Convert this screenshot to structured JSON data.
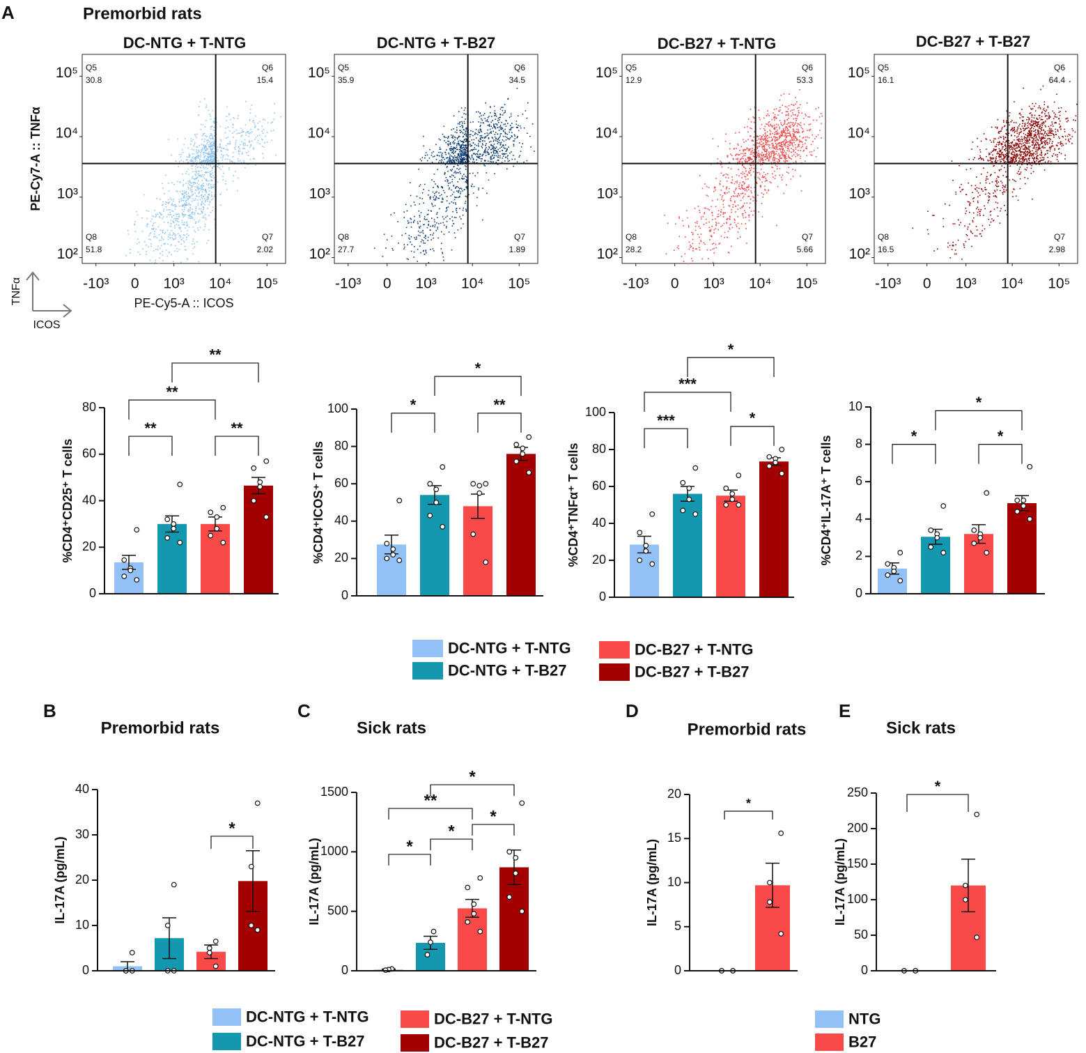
{
  "panel_labels": [
    "A",
    "B",
    "C",
    "D",
    "E"
  ],
  "header": "Premorbid rats",
  "axis_icon": {
    "y": "TNFα",
    "x": "ICOS"
  },
  "legends": [
    {
      "entries": [
        {
          "name": "DC-NTG + T-NTG",
          "color": "#92c1f7"
        },
        {
          "name": "DC-NTG + T-B27",
          "color": "#1398b0"
        },
        {
          "name": "DC-B27 + T-NTG",
          "color": "#f94a4a"
        },
        {
          "name": "DC-B27 + T-B27",
          "color": "#a30000"
        }
      ]
    },
    {
      "entries": [
        {
          "name": "DC-NTG + T-NTG",
          "color": "#92c1f7"
        },
        {
          "name": "DC-NTG + T-B27",
          "color": "#1398b0"
        },
        {
          "name": "DC-B27 + T-NTG",
          "color": "#f94a4a"
        },
        {
          "name": "DC-B27 + T-B27",
          "color": "#a30000"
        }
      ]
    },
    {
      "entries": [
        {
          "name": "NTG",
          "color": "#92c1f7"
        },
        {
          "name": "B27",
          "color": "#f94a4a"
        }
      ]
    }
  ],
  "chart_data": [
    {
      "type": "flow",
      "title": "DC-NTG + T-NTG",
      "ylabel": "PE-Cy7-A :: TNFα",
      "xlabel": "PE-Cy5-A :: ICOS",
      "color": "#8fc4ee",
      "xscale": "biexponential",
      "yscale": "log",
      "xlim": [
        -2000,
        250000
      ],
      "ylim": [
        80,
        230000
      ],
      "xticks": [
        {
          "value": -1000,
          "label": "-10³"
        },
        0,
        {
          "value": 1000,
          "label": "10³"
        },
        {
          "value": 10000,
          "label": "10⁴"
        },
        {
          "value": 100000,
          "label": "10⁵"
        }
      ],
      "yticks": [
        {
          "value": 100,
          "label": "10²"
        },
        {
          "value": 1000,
          "label": "10³"
        },
        {
          "value": 10000,
          "label": "10⁴"
        },
        {
          "value": 100000,
          "label": "10⁵"
        }
      ],
      "gate": {
        "x": 8000,
        "y": 3600
      },
      "quadrants": [
        {
          "name": "Q5",
          "value": 30.8
        },
        {
          "name": "Q6",
          "value": 15.4
        },
        {
          "name": "Q8",
          "value": 51.8
        },
        {
          "name": "Q7",
          "value": 2.02
        }
      ]
    },
    {
      "type": "flow",
      "title": "DC-NTG + T-B27",
      "color": "#0d3c70",
      "xscale": "biexponential",
      "yscale": "log",
      "xlim": [
        -2000,
        250000
      ],
      "ylim": [
        80,
        230000
      ],
      "xticks": [
        {
          "value": -1000,
          "label": "-10³"
        },
        0,
        {
          "value": 1000,
          "label": "10³"
        },
        {
          "value": 10000,
          "label": "10⁴"
        },
        {
          "value": 100000,
          "label": "10⁵"
        }
      ],
      "yticks": [
        {
          "value": 100,
          "label": "10²"
        },
        {
          "value": 1000,
          "label": "10³"
        },
        {
          "value": 10000,
          "label": "10⁴"
        },
        {
          "value": 100000,
          "label": "10⁵"
        }
      ],
      "gate": {
        "x": 8000,
        "y": 3600
      },
      "quadrants": [
        {
          "name": "Q5",
          "value": 35.9
        },
        {
          "name": "Q6",
          "value": 34.5
        },
        {
          "name": "Q8",
          "value": 27.7
        },
        {
          "name": "Q7",
          "value": 1.89
        }
      ]
    },
    {
      "type": "flow",
      "title": "DC-B27 + T-NTG",
      "color": "#f04848",
      "xscale": "biexponential",
      "yscale": "log",
      "xlim": [
        -2000,
        250000
      ],
      "ylim": [
        80,
        230000
      ],
      "xticks": [
        {
          "value": -1000,
          "label": "-10³"
        },
        0,
        {
          "value": 1000,
          "label": "10³"
        },
        {
          "value": 10000,
          "label": "10⁴"
        },
        {
          "value": 100000,
          "label": "10⁵"
        }
      ],
      "yticks": [
        {
          "value": 100,
          "label": "10²"
        },
        {
          "value": 1000,
          "label": "10³"
        },
        {
          "value": 10000,
          "label": "10⁴"
        },
        {
          "value": 100000,
          "label": "10⁵"
        }
      ],
      "gate": {
        "x": 8000,
        "y": 3600
      },
      "quadrants": [
        {
          "name": "Q5",
          "value": 12.9
        },
        {
          "name": "Q6",
          "value": 53.3
        },
        {
          "name": "Q8",
          "value": 28.2
        },
        {
          "name": "Q7",
          "value": 5.66
        }
      ]
    },
    {
      "type": "flow",
      "title": "DC-B27 + T-B27",
      "color": "#8b0000",
      "xscale": "biexponential",
      "yscale": "log",
      "xlim": [
        -2000,
        250000
      ],
      "ylim": [
        80,
        230000
      ],
      "xticks": [
        {
          "value": -1000,
          "label": "-10³"
        },
        0,
        {
          "value": 1000,
          "label": "10³"
        },
        {
          "value": 10000,
          "label": "10⁴"
        },
        {
          "value": 100000,
          "label": "10⁵"
        }
      ],
      "yticks": [
        {
          "value": 100,
          "label": "10²"
        },
        {
          "value": 1000,
          "label": "10³"
        },
        {
          "value": 10000,
          "label": "10⁴"
        },
        {
          "value": 100000,
          "label": "10⁵"
        }
      ],
      "gate": {
        "x": 8000,
        "y": 3600
      },
      "quadrants": [
        {
          "name": "Q5",
          "value": 16.1
        },
        {
          "name": "Q6",
          "value": 64.4
        },
        {
          "name": "Q8",
          "value": 16.5
        },
        {
          "name": "Q7",
          "value": 2.98
        }
      ]
    },
    {
      "type": "bar-dot",
      "ylabel": "%CD4⁺CD25⁺ T cells",
      "ylim": [
        0,
        80
      ],
      "yticks": [
        0,
        20,
        40,
        60,
        80
      ],
      "colors": [
        "#92c1f7",
        "#1398b0",
        "#f94a4a",
        "#a30000"
      ],
      "values": [
        13.5,
        30,
        30,
        46.5
      ],
      "errors": [
        3,
        3.5,
        3,
        3.5
      ],
      "points": [
        [
          27.5,
          14.5,
          11,
          10,
          7.5,
          6
        ],
        [
          47,
          32,
          30,
          28,
          24,
          22
        ],
        [
          37,
          35,
          33,
          28,
          25,
          22
        ],
        [
          57,
          54,
          48,
          46,
          40,
          33
        ]
      ],
      "significance": [
        {
          "groups": [
            0,
            1
          ],
          "y": 67.7,
          "label": "**"
        },
        {
          "groups": [
            2,
            3
          ],
          "y": 67.7,
          "label": "**"
        },
        {
          "groups": [
            0,
            2
          ],
          "y": 83.3,
          "label": "**"
        },
        {
          "groups": [
            1,
            3
          ],
          "y": 99.2,
          "label": "**"
        }
      ]
    },
    {
      "type": "bar-dot",
      "ylabel": "%CD4⁺ICOS⁺ T cells",
      "ylim": [
        0,
        100
      ],
      "yticks": [
        0,
        20,
        40,
        60,
        80,
        100
      ],
      "colors": [
        "#92c1f7",
        "#1398b0",
        "#f94a4a",
        "#a30000"
      ],
      "values": [
        27.5,
        54,
        48,
        76
      ],
      "errors": [
        5,
        5,
        6.5,
        3.5
      ],
      "points": [
        [
          51,
          28,
          25,
          22,
          20,
          19
        ],
        [
          69,
          60,
          57,
          50,
          43,
          37
        ],
        [
          60,
          60,
          59,
          55,
          33,
          18
        ],
        [
          85,
          81,
          79,
          76,
          72,
          66
        ]
      ],
      "significance": [
        {
          "groups": [
            0,
            1
          ],
          "y": 97.8,
          "label": "*"
        },
        {
          "groups": [
            2,
            3
          ],
          "y": 97.8,
          "label": "**"
        },
        {
          "groups": [
            1,
            3
          ],
          "y": 117.5,
          "label": "*"
        }
      ]
    },
    {
      "type": "bar-dot",
      "ylabel": "%CD4⁺TNFα⁺ T cells",
      "ylim": [
        0,
        100
      ],
      "yticks": [
        0,
        20,
        40,
        60,
        80,
        100
      ],
      "colors": [
        "#92c1f7",
        "#1398b0",
        "#f94a4a",
        "#a30000"
      ],
      "values": [
        28.5,
        56,
        55,
        73.5
      ],
      "errors": [
        4.5,
        4,
        3,
        2
      ],
      "points": [
        [
          45,
          35,
          28,
          25,
          20,
          18
        ],
        [
          70,
          62,
          59,
          53,
          47,
          45
        ],
        [
          66,
          59,
          56,
          53,
          50,
          50
        ],
        [
          80,
          76,
          75,
          73,
          71,
          67
        ]
      ],
      "significance": [
        {
          "groups": [
            0,
            1
          ],
          "y": 91.3,
          "label": "***"
        },
        {
          "groups": [
            2,
            3
          ],
          "y": 92.5,
          "label": "*"
        },
        {
          "groups": [
            0,
            2
          ],
          "y": 111,
          "label": "***"
        },
        {
          "groups": [
            1,
            3
          ],
          "y": 129.8,
          "label": "*"
        }
      ]
    },
    {
      "type": "bar-dot",
      "ylabel": "%CD4⁺IL-17A⁺ T cells",
      "ylim": [
        0,
        10
      ],
      "yticks": [
        0,
        2,
        4,
        6,
        8,
        10
      ],
      "colors": [
        "#92c1f7",
        "#1398b0",
        "#f94a4a",
        "#a30000"
      ],
      "values": [
        1.35,
        3.05,
        3.2,
        4.85
      ],
      "errors": [
        0.3,
        0.4,
        0.5,
        0.4
      ],
      "points": [
        [
          2.2,
          1.6,
          1.4,
          1.2,
          1.0,
          0.7
        ],
        [
          4.7,
          3.4,
          3.2,
          3.0,
          2.5,
          2.2
        ],
        [
          5.4,
          3.4,
          3.2,
          3.0,
          2.7,
          2.2
        ],
        [
          6.8,
          5.0,
          5.0,
          4.7,
          4.4,
          4.0
        ]
      ],
      "significance": [
        {
          "groups": [
            0,
            1
          ],
          "y": 8.0,
          "label": "*"
        },
        {
          "groups": [
            2,
            3
          ],
          "y": 8.0,
          "label": "*"
        },
        {
          "groups": [
            1,
            3
          ],
          "y": 9.8,
          "label": "*"
        }
      ]
    },
    {
      "type": "bar-dot",
      "title": "Premorbid rats",
      "ylabel": "IL-17A (pg/mL)",
      "ylim": [
        0,
        40
      ],
      "yticks": [
        0,
        10,
        20,
        30,
        40
      ],
      "colors": [
        "#92c1f7",
        "#1398b0",
        "#f94a4a",
        "#a30000"
      ],
      "values": [
        1,
        7.2,
        4.2,
        19.8
      ],
      "errors": [
        1,
        4.5,
        1.5,
        6.7
      ],
      "points": [
        [
          4,
          0,
          0,
          0
        ],
        [
          19,
          10,
          0,
          0
        ],
        [
          6.5,
          5,
          4,
          1
        ],
        [
          37,
          23,
          10,
          9
        ]
      ],
      "significance": [
        {
          "groups": [
            2,
            3
          ],
          "y": 29.7,
          "label": "*"
        }
      ]
    },
    {
      "type": "bar-dot",
      "title": "Sick rats",
      "ylabel": "IL-17A (pg/mL)",
      "ylim": [
        0,
        1500
      ],
      "yticks": [
        0,
        500,
        1000,
        1500
      ],
      "colors": [
        "#92c1f7",
        "#1398b0",
        "#f94a4a",
        "#a30000"
      ],
      "values": [
        10,
        235,
        525,
        870
      ],
      "errors": [
        5,
        55,
        75,
        145
      ],
      "points": [
        [
          15,
          10,
          5
        ],
        [
          330,
          240,
          135
        ],
        [
          780,
          700,
          560,
          480,
          410,
          330
        ],
        [
          1410,
          1000,
          950,
          820,
          620,
          500
        ]
      ],
      "significance": [
        {
          "groups": [
            0,
            1
          ],
          "y": 979,
          "label": "*"
        },
        {
          "groups": [
            1,
            2
          ],
          "y": 1107,
          "label": "*"
        },
        {
          "groups": [
            2,
            3
          ],
          "y": 1230,
          "label": "*"
        },
        {
          "groups": [
            0,
            2
          ],
          "y": 1365,
          "label": "**"
        },
        {
          "groups": [
            1,
            3
          ],
          "y": 1564,
          "label": "*"
        }
      ]
    },
    {
      "type": "bar-dot",
      "title": "Premorbid rats",
      "ylabel": "IL-17A (pg/mL)",
      "ylim": [
        0,
        20
      ],
      "yticks": [
        0,
        5,
        10,
        15,
        20
      ],
      "colors": [
        "#92c1f7",
        "#f94a4a"
      ],
      "values": [
        0,
        9.7
      ],
      "errors": [
        0,
        2.5
      ],
      "points": [
        [
          0,
          0,
          0,
          0
        ],
        [
          15.6,
          10,
          7.8,
          4.2
        ]
      ],
      "significance": [
        {
          "groups": [
            0,
            1
          ],
          "y": 18.1,
          "label": "*"
        }
      ]
    },
    {
      "type": "bar-dot",
      "title": "Sick rats",
      "ylabel": "IL-17A (pg/mL)",
      "ylim": [
        0,
        250
      ],
      "yticks": [
        0,
        50,
        100,
        150,
        200,
        250
      ],
      "colors": [
        "#92c1f7",
        "#f94a4a"
      ],
      "values": [
        0,
        120
      ],
      "errors": [
        0,
        37
      ],
      "points": [
        [
          0,
          0,
          0,
          0
        ],
        [
          220,
          120,
          100,
          47
        ]
      ],
      "significance": [
        {
          "groups": [
            0,
            1
          ],
          "y": 248,
          "label": "*"
        }
      ]
    }
  ]
}
